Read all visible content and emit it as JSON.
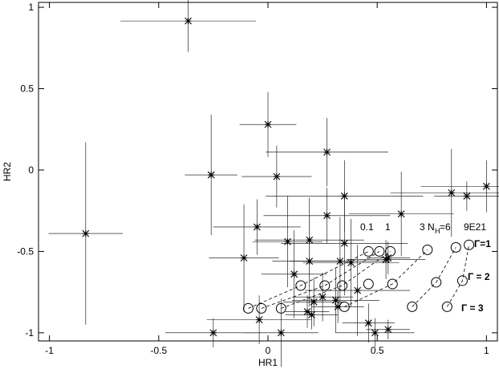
{
  "chart_data": {
    "type": "scatter",
    "xlabel": "HR1",
    "ylabel": "HR2",
    "xlim": [
      -1.05,
      1.05
    ],
    "ylim": [
      -1.05,
      1.03
    ],
    "xticks": [
      -1,
      -0.5,
      0,
      0.5,
      1
    ],
    "yticks": [
      -1,
      -0.5,
      0,
      0.5,
      1
    ],
    "color": "#000000",
    "x": [
      -0.365,
      -0.834,
      0,
      -0.26,
      -0.05,
      0.04,
      0.27,
      0.35,
      0.27,
      0.61,
      0.84,
      0.91,
      1.0,
      -0.11,
      0.09,
      0.19,
      0.35,
      0.19,
      0.12,
      0.33,
      0.38,
      0.54,
      0.55,
      0.41,
      0.31,
      0.32,
      0.18,
      0.2,
      0.21,
      -0.04,
      -0.25,
      0.06,
      0.49,
      0.55,
      0.46,
      0.25
    ],
    "values": [
      0.916,
      -0.39,
      0.28,
      -0.03,
      -0.35,
      -0.04,
      0.11,
      -0.16,
      -0.28,
      -0.27,
      -0.14,
      -0.16,
      -0.1,
      -0.54,
      -0.44,
      -0.43,
      -0.45,
      -0.56,
      -0.64,
      -0.56,
      -0.57,
      -0.55,
      -0.54,
      -0.74,
      -0.8,
      -0.84,
      -0.87,
      -0.89,
      -0.81,
      -0.92,
      -1.0,
      -1.0,
      -1.0,
      -0.98,
      -0.94,
      -0.78
    ],
    "xerr": [
      0.31,
      0.17,
      0.13,
      0.12,
      0.2,
      0.16,
      0.28,
      0.36,
      0.29,
      0.24,
      0.28,
      0.15,
      0.3,
      0.16,
      0.16,
      0.25,
      0.29,
      0.17,
      0.15,
      0.23,
      0.22,
      0.18,
      0.1,
      0.24,
      0.2,
      0.12,
      0.1,
      0.12,
      0.14,
      0.24,
      0.22,
      0.17,
      0.18,
      0.1,
      0.12,
      0.14
    ],
    "yerr": [
      0.19,
      0.56,
      0.2,
      0.37,
      0.17,
      0.19,
      0.21,
      0.22,
      0.17,
      0.26,
      0.27,
      0.09,
      0.16,
      0.33,
      0.28,
      0.26,
      0.32,
      0.28,
      0.27,
      0.27,
      0.27,
      0.12,
      0.1,
      0.28,
      0.2,
      0.1,
      0.1,
      0.09,
      0.15,
      0.15,
      0.09,
      0.21,
      0.09,
      0.06,
      0.12,
      0.15
    ],
    "models": {
      "x": [
        -0.09,
        -0.03,
        0.06,
        0.15,
        0.26,
        0.34,
        0.35,
        0.46,
        0.46,
        0.51,
        0.56,
        0.57,
        0.73,
        0.66,
        0.77,
        0.82,
        0.86,
        0.89,
        0.92
      ],
      "values": [
        -0.85,
        -0.85,
        -0.85,
        -0.71,
        -0.71,
        -0.71,
        -0.84,
        -0.7,
        -0.5,
        -0.5,
        -0.5,
        -0.7,
        -0.49,
        -0.84,
        -0.69,
        -0.84,
        -0.475,
        -0.68,
        -0.46
      ]
    },
    "dashed_lines": [
      {
        "x": [
          -0.09,
          0.15,
          0.46
        ],
        "values": [
          -0.85,
          -0.71,
          -0.5
        ]
      },
      {
        "x": [
          -0.03,
          0.26,
          0.51
        ],
        "values": [
          -0.85,
          -0.71,
          -0.5
        ]
      },
      {
        "x": [
          0.06,
          0.34,
          0.56
        ],
        "values": [
          -0.85,
          -0.71,
          -0.5
        ]
      },
      {
        "x": [
          0.35,
          0.57,
          0.73
        ],
        "values": [
          -0.84,
          -0.7,
          -0.49
        ]
      },
      {
        "x": [
          0.66,
          0.77,
          0.86
        ],
        "values": [
          -0.84,
          -0.69,
          -0.475
        ]
      },
      {
        "x": [
          0.82,
          0.89,
          0.92
        ],
        "values": [
          -0.84,
          -0.68,
          -0.46
        ]
      }
    ],
    "annotations": [
      "0.1",
      "1",
      "3",
      "N",
      "H",
      "=6",
      "9E21",
      "Γ=1",
      "Γ = 2",
      "Γ = 3"
    ]
  }
}
